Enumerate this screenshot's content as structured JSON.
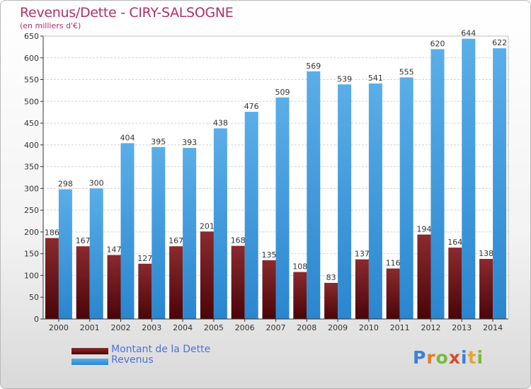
{
  "title": "Revenus/Dette - CIRY-SALSOGNE",
  "subtitle": "(en milliers d'€)",
  "logo": {
    "text": "Proxiti",
    "letter_colors": [
      "#3d7fd8",
      "#e8782a",
      "#79b93a",
      "#d94b2e",
      "#3d7fd8",
      "#e8a62a",
      "#79b93a"
    ]
  },
  "colors": {
    "dette": "#6b1216",
    "revenus": "#2f8fd8",
    "legend_text": "#4a70e0",
    "title": "#b0306a"
  },
  "chart_data": {
    "type": "bar",
    "title": "Revenus/Dette - CIRY-SALSOGNE",
    "subtitle": "(en milliers d'€)",
    "categories": [
      "2000",
      "2001",
      "2002",
      "2003",
      "2004",
      "2005",
      "2006",
      "2007",
      "2008",
      "2009",
      "2010",
      "2011",
      "2012",
      "2013",
      "2014"
    ],
    "series": [
      {
        "name": "Montant de la Dette",
        "color": "#6b1216",
        "values": [
          186,
          167,
          147,
          127,
          167,
          201,
          168,
          135,
          108,
          83,
          137,
          116,
          194,
          164,
          138
        ]
      },
      {
        "name": "Revenus",
        "color": "#2f8fd8",
        "values": [
          298,
          300,
          404,
          395,
          393,
          438,
          476,
          509,
          569,
          539,
          541,
          555,
          620,
          644,
          622
        ]
      }
    ],
    "ylim": [
      0,
      650
    ],
    "yticks": [
      0,
      50,
      100,
      150,
      200,
      250,
      300,
      350,
      400,
      450,
      500,
      550,
      600,
      650
    ],
    "grid": true,
    "legend_position": "bottom-left"
  }
}
